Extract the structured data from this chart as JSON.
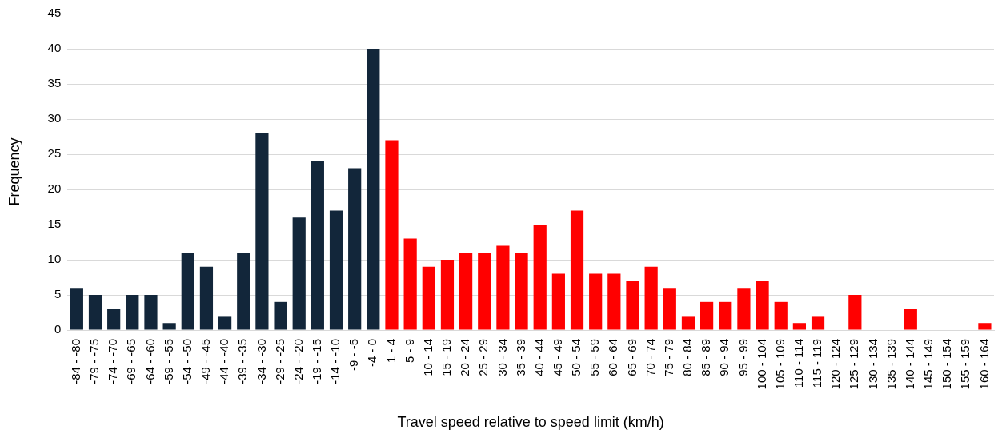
{
  "chart_data": {
    "type": "bar",
    "xlabel": "Travel speed relative to speed limit (km/h)",
    "ylabel": "Frequency",
    "categories": [
      "-84 - -80",
      "-79 - -75",
      "-74 - -70",
      "-69 - -65",
      "-64 - -60",
      "-59 - -55",
      "-54 - -50",
      "-49 - -45",
      "-44 - -40",
      "-39 - -35",
      "-34 - -30",
      "-29 - -25",
      "-24 - -20",
      "-19 - -15",
      "-14 - -10",
      "-9 - -5",
      "-4 - 0",
      "1 - 4",
      "5 - 9",
      "10 - 14",
      "15 - 19",
      "20 - 24",
      "25 - 29",
      "30 - 34",
      "35 - 39",
      "40 - 44",
      "45 - 49",
      "50 - 54",
      "55 - 59",
      "60 - 64",
      "65 - 69",
      "70 - 74",
      "75 - 79",
      "80 - 84",
      "85 - 89",
      "90 - 94",
      "95 - 99",
      "100 - 104",
      "105 - 109",
      "110 - 114",
      "115 - 119",
      "120 - 124",
      "125 - 129",
      "130 - 134",
      "135 - 139",
      "140 - 144",
      "145 - 149",
      "150 - 154",
      "155 - 159",
      "160 - 164"
    ],
    "values": [
      6,
      5,
      3,
      5,
      5,
      1,
      11,
      9,
      2,
      11,
      28,
      4,
      16,
      24,
      17,
      23,
      40,
      27,
      13,
      9,
      10,
      11,
      11,
      12,
      11,
      15,
      8,
      17,
      8,
      8,
      7,
      9,
      6,
      2,
      4,
      4,
      6,
      7,
      4,
      1,
      2,
      0,
      5,
      0,
      0,
      3,
      0,
      0,
      0,
      1
    ],
    "colors": [
      "#12263a",
      "#12263a",
      "#12263a",
      "#12263a",
      "#12263a",
      "#12263a",
      "#12263a",
      "#12263a",
      "#12263a",
      "#12263a",
      "#12263a",
      "#12263a",
      "#12263a",
      "#12263a",
      "#12263a",
      "#12263a",
      "#12263a",
      "#ff0000",
      "#ff0000",
      "#ff0000",
      "#ff0000",
      "#ff0000",
      "#ff0000",
      "#ff0000",
      "#ff0000",
      "#ff0000",
      "#ff0000",
      "#ff0000",
      "#ff0000",
      "#ff0000",
      "#ff0000",
      "#ff0000",
      "#ff0000",
      "#ff0000",
      "#ff0000",
      "#ff0000",
      "#ff0000",
      "#ff0000",
      "#ff0000",
      "#ff0000",
      "#ff0000",
      "#ff0000",
      "#ff0000",
      "#ff0000",
      "#ff0000",
      "#ff0000",
      "#ff0000",
      "#ff0000",
      "#ff0000",
      "#ff0000"
    ],
    "ylim": [
      0,
      45
    ],
    "yticks": [
      0,
      5,
      10,
      15,
      20,
      25,
      30,
      35,
      40,
      45
    ],
    "grid": "y",
    "legend": false
  }
}
